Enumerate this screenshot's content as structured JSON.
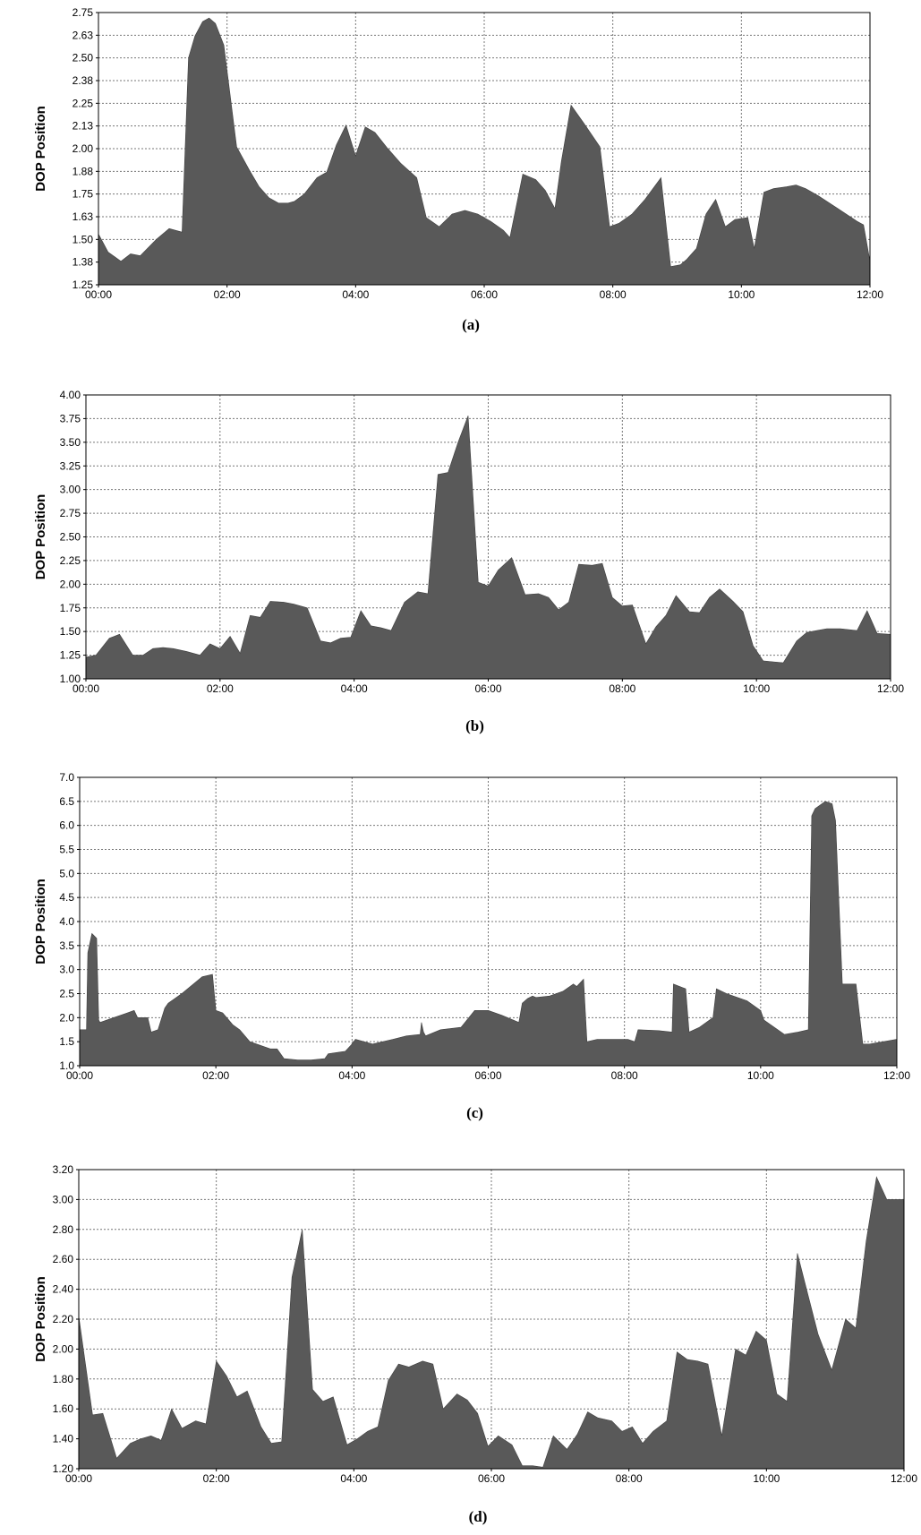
{
  "chart_data": [
    {
      "type": "area",
      "caption": "(a)",
      "ylabel": "DOP Position",
      "xlabel": "",
      "x_ticks": [
        "00:00",
        "02:00",
        "04:00",
        "06:00",
        "08:00",
        "10:00",
        "12:00"
      ],
      "y_ticks": [
        "1.25",
        "1.38",
        "1.50",
        "1.63",
        "1.75",
        "1.88",
        "2.00",
        "2.13",
        "2.25",
        "2.38",
        "2.50",
        "2.63",
        "2.75"
      ],
      "xlim": [
        0,
        12
      ],
      "ylim": [
        1.25,
        2.75
      ],
      "grid": true,
      "fill_color": "#595959",
      "series": [
        {
          "x": [
            0,
            0.15,
            0.35,
            0.5,
            0.65,
            0.9,
            1.1,
            1.3,
            1.4,
            1.5,
            1.62,
            1.72,
            1.82,
            1.95,
            2.15,
            2.35,
            2.5,
            2.65,
            2.8,
            2.95,
            3.05,
            3.2,
            3.4,
            3.55,
            3.7,
            3.85,
            4.0,
            4.15,
            4.3,
            4.5,
            4.7,
            4.95,
            5.1,
            5.3,
            5.5,
            5.7,
            5.9,
            6.1,
            6.3,
            6.4,
            6.6,
            6.8,
            6.95,
            7.1,
            7.2,
            7.35,
            7.55,
            7.8,
            7.95,
            8.1,
            8.3,
            8.5,
            8.75,
            8.9,
            9.05,
            9.15,
            9.3,
            9.45,
            9.6,
            9.75,
            9.9,
            10.1,
            10.2,
            10.35,
            10.5,
            10.7,
            10.85,
            11.0,
            11.2,
            11.5,
            11.8,
            11.9,
            12.0
          ],
          "y": [
            1.53,
            1.43,
            1.38,
            1.42,
            1.41,
            1.5,
            1.56,
            1.54,
            2.5,
            2.62,
            2.7,
            2.72,
            2.69,
            2.57,
            2.01,
            1.88,
            1.79,
            1.73,
            1.7,
            1.7,
            1.71,
            1.75,
            1.84,
            1.87,
            2.02,
            2.13,
            1.96,
            2.12,
            2.09,
            2.0,
            1.92,
            1.84,
            1.62,
            1.57,
            1.64,
            1.66,
            1.64,
            1.6,
            1.55,
            1.51,
            1.86,
            1.83,
            1.77,
            1.67,
            1.93,
            2.24,
            2.14,
            2.01,
            1.57,
            1.59,
            1.64,
            1.72,
            1.84,
            1.35,
            1.36,
            1.39,
            1.45,
            1.64,
            1.72,
            1.57,
            1.61,
            1.62,
            1.45,
            1.76,
            1.78,
            1.79,
            1.8,
            1.78,
            1.74,
            1.67,
            1.6,
            1.58,
            1.38
          ]
        }
      ]
    },
    {
      "type": "area",
      "caption": "(b)",
      "ylabel": "DOP Position",
      "xlabel": "",
      "x_ticks": [
        "00:00",
        "02:00",
        "04:00",
        "06:00",
        "08:00",
        "10:00",
        "12:00"
      ],
      "y_ticks": [
        "1.00",
        "1.25",
        "1.50",
        "1.75",
        "2.00",
        "2.25",
        "2.50",
        "2.75",
        "3.00",
        "3.25",
        "3.50",
        "3.75",
        "4.00"
      ],
      "xlim": [
        0,
        12
      ],
      "ylim": [
        1.0,
        4.0
      ],
      "grid": true,
      "fill_color": "#595959",
      "series": [
        {
          "x": [
            0,
            0.15,
            0.35,
            0.5,
            0.7,
            0.85,
            1.0,
            1.15,
            1.3,
            1.5,
            1.7,
            1.85,
            2.0,
            2.15,
            2.3,
            2.45,
            2.6,
            2.75,
            2.95,
            3.1,
            3.3,
            3.5,
            3.65,
            3.8,
            3.95,
            4.1,
            4.25,
            4.4,
            4.55,
            4.75,
            4.95,
            5.1,
            5.25,
            5.4,
            5.55,
            5.7,
            5.85,
            6.0,
            6.15,
            6.35,
            6.55,
            6.75,
            6.9,
            7.05,
            7.2,
            7.35,
            7.55,
            7.7,
            7.85,
            8.0,
            8.15,
            8.35,
            8.5,
            8.65,
            8.8,
            9.0,
            9.15,
            9.3,
            9.45,
            9.65,
            9.8,
            9.95,
            10.1,
            10.25,
            10.4,
            10.6,
            10.75,
            10.9,
            11.05,
            11.25,
            11.5,
            11.65,
            11.8,
            12.0
          ],
          "y": [
            1.23,
            1.25,
            1.43,
            1.47,
            1.25,
            1.25,
            1.32,
            1.33,
            1.32,
            1.29,
            1.25,
            1.37,
            1.32,
            1.45,
            1.27,
            1.67,
            1.65,
            1.82,
            1.81,
            1.79,
            1.75,
            1.4,
            1.38,
            1.43,
            1.44,
            1.72,
            1.56,
            1.54,
            1.51,
            1.81,
            1.92,
            1.9,
            3.16,
            3.18,
            3.5,
            3.78,
            2.02,
            1.98,
            2.15,
            2.28,
            1.89,
            1.9,
            1.86,
            1.73,
            1.81,
            2.21,
            2.2,
            2.22,
            1.86,
            1.77,
            1.78,
            1.37,
            1.55,
            1.67,
            1.88,
            1.71,
            1.7,
            1.86,
            1.95,
            1.82,
            1.71,
            1.35,
            1.19,
            1.18,
            1.17,
            1.4,
            1.49,
            1.51,
            1.53,
            1.53,
            1.51,
            1.72,
            1.48,
            1.47
          ]
        }
      ]
    },
    {
      "type": "area",
      "caption": "(c)",
      "ylabel": "DOP Position",
      "xlabel": "",
      "x_ticks": [
        "00:00",
        "02:00",
        "04:00",
        "06:00",
        "08:00",
        "10:00",
        "12:00"
      ],
      "y_ticks": [
        "1.0",
        "1.5",
        "2.0",
        "2.5",
        "3.0",
        "3.5",
        "4.0",
        "4.5",
        "5.0",
        "5.5",
        "6.0",
        "6.5",
        "7.0"
      ],
      "xlim": [
        0,
        12
      ],
      "ylim": [
        1.0,
        7.0
      ],
      "grid": true,
      "fill_color": "#595959",
      "series": [
        {
          "x": [
            0,
            0.1,
            0.12,
            0.18,
            0.25,
            0.28,
            0.3,
            0.5,
            0.7,
            0.8,
            0.85,
            1.0,
            1.05,
            1.15,
            1.25,
            1.3,
            1.5,
            1.8,
            1.95,
            2.0,
            2.1,
            2.25,
            2.35,
            2.5,
            2.8,
            2.9,
            3.0,
            3.2,
            3.4,
            3.6,
            3.65,
            3.9,
            4.0,
            4.05,
            4.3,
            4.6,
            4.8,
            5.0,
            5.02,
            5.05,
            5.08,
            5.3,
            5.6,
            5.8,
            6.0,
            6.2,
            6.45,
            6.5,
            6.58,
            6.65,
            6.7,
            6.9,
            7.1,
            7.25,
            7.3,
            7.4,
            7.45,
            7.6,
            8.0,
            8.05,
            8.15,
            8.2,
            8.5,
            8.7,
            8.72,
            8.9,
            8.95,
            9.1,
            9.3,
            9.35,
            9.5,
            9.8,
            10.0,
            10.05,
            10.15,
            10.35,
            10.55,
            10.7,
            10.75,
            10.8,
            10.95,
            11.05,
            11.1,
            11.2,
            11.25,
            11.4,
            11.5,
            11.6,
            11.8,
            12.0
          ],
          "y": [
            1.75,
            1.75,
            3.35,
            3.75,
            3.65,
            1.95,
            1.9,
            2.0,
            2.1,
            2.15,
            2.0,
            2.0,
            1.7,
            1.75,
            2.2,
            2.3,
            2.5,
            2.85,
            2.9,
            2.15,
            2.1,
            1.85,
            1.75,
            1.5,
            1.35,
            1.35,
            1.15,
            1.12,
            1.12,
            1.15,
            1.25,
            1.3,
            1.45,
            1.55,
            1.45,
            1.55,
            1.62,
            1.65,
            1.9,
            1.7,
            1.62,
            1.75,
            1.8,
            2.15,
            2.15,
            2.05,
            1.9,
            2.3,
            2.4,
            2.45,
            2.42,
            2.45,
            2.55,
            2.7,
            2.65,
            2.8,
            1.5,
            1.55,
            1.55,
            1.55,
            1.5,
            1.75,
            1.73,
            1.7,
            2.7,
            2.6,
            1.7,
            1.8,
            2.0,
            2.6,
            2.5,
            2.35,
            2.15,
            1.95,
            1.85,
            1.65,
            1.7,
            1.75,
            6.2,
            6.35,
            6.5,
            6.45,
            6.1,
            2.7,
            2.7,
            2.7,
            1.45,
            1.45,
            1.5,
            1.55
          ]
        }
      ]
    },
    {
      "type": "area",
      "caption": "(d)",
      "ylabel": "DOP Position",
      "xlabel": "",
      "x_ticks": [
        "00:00",
        "02:00",
        "04:00",
        "06:00",
        "08:00",
        "10:00",
        "12:00"
      ],
      "y_ticks": [
        "1.20",
        "1.40",
        "1.60",
        "1.80",
        "2.00",
        "2.20",
        "2.40",
        "2.60",
        "2.80",
        "3.00",
        "3.20"
      ],
      "xlim": [
        0,
        12
      ],
      "ylim": [
        1.2,
        3.2
      ],
      "grid": true,
      "fill_color": "#595959",
      "series": [
        {
          "x": [
            0,
            0.2,
            0.35,
            0.55,
            0.75,
            0.9,
            1.05,
            1.2,
            1.35,
            1.5,
            1.7,
            1.85,
            2.0,
            2.15,
            2.3,
            2.45,
            2.65,
            2.8,
            2.95,
            3.1,
            3.25,
            3.4,
            3.55,
            3.7,
            3.9,
            4.05,
            4.2,
            4.35,
            4.5,
            4.65,
            4.8,
            5.0,
            5.15,
            5.3,
            5.5,
            5.65,
            5.8,
            5.95,
            6.1,
            6.3,
            6.45,
            6.6,
            6.75,
            6.9,
            7.1,
            7.25,
            7.4,
            7.55,
            7.75,
            7.9,
            8.05,
            8.2,
            8.35,
            8.55,
            8.7,
            8.85,
            9.0,
            9.15,
            9.35,
            9.55,
            9.7,
            9.85,
            10.0,
            10.15,
            10.3,
            10.45,
            10.6,
            10.75,
            10.95,
            11.15,
            11.3,
            11.45,
            11.6,
            11.75,
            11.9,
            12.0
          ],
          "y": [
            2.22,
            1.56,
            1.57,
            1.27,
            1.37,
            1.4,
            1.42,
            1.39,
            1.6,
            1.47,
            1.52,
            1.5,
            1.92,
            1.82,
            1.68,
            1.72,
            1.48,
            1.37,
            1.38,
            2.48,
            2.8,
            1.73,
            1.65,
            1.68,
            1.36,
            1.4,
            1.45,
            1.48,
            1.79,
            1.9,
            1.88,
            1.92,
            1.9,
            1.6,
            1.7,
            1.66,
            1.57,
            1.35,
            1.42,
            1.36,
            1.22,
            1.22,
            1.21,
            1.42,
            1.33,
            1.43,
            1.58,
            1.54,
            1.52,
            1.45,
            1.48,
            1.37,
            1.45,
            1.52,
            1.98,
            1.93,
            1.92,
            1.9,
            1.42,
            2.0,
            1.96,
            2.12,
            2.06,
            1.7,
            1.65,
            2.64,
            2.37,
            2.1,
            1.86,
            2.2,
            2.14,
            2.72,
            3.15,
            3.0,
            3.0,
            3.0
          ]
        }
      ]
    }
  ]
}
